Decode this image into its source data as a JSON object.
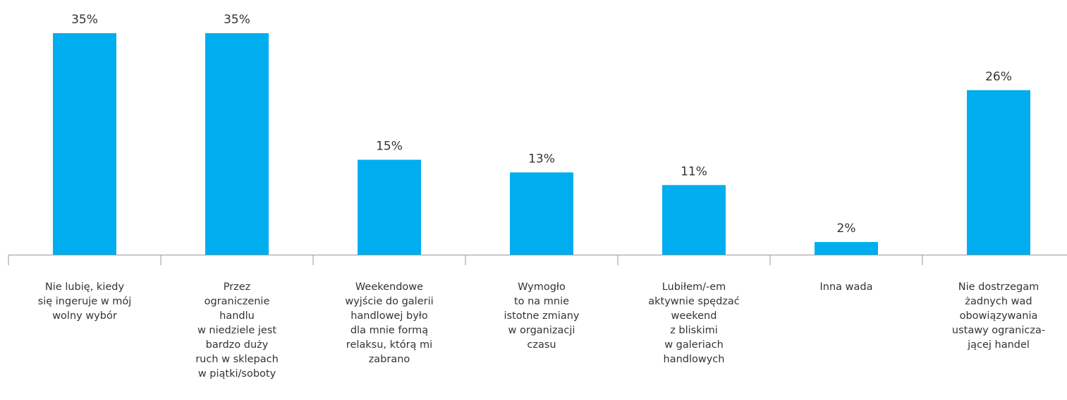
{
  "chart_data": {
    "type": "bar",
    "color": "#00aeef",
    "categories": [
      [
        "Nie lubię, kiedy",
        "się ingeruje w mój",
        "wolny wybór"
      ],
      [
        "Przez",
        "ograniczenie",
        "handlu",
        "w niedziele jest",
        "bardzo duży",
        "ruch w sklepach",
        "w piątki/soboty"
      ],
      [
        "Weekendowe",
        "wyjście do galerii",
        "handlowej było",
        "dla mnie formą",
        "relaksu, którą mi",
        "zabrano"
      ],
      [
        "Wymogło",
        "to na mnie",
        "istotne zmiany",
        "w organizacji",
        "czasu"
      ],
      [
        "Lubiłem/-em",
        "aktywnie spędzać",
        "weekend",
        "z bliskimi",
        "w galeriach",
        "handlowych"
      ],
      [
        "Inna wada"
      ],
      [
        "Nie dostrzegam",
        "żadnych wad",
        "obowiązywania",
        "ustawy ogranicza-",
        "jącej handel"
      ]
    ],
    "values": [
      35,
      35,
      15,
      13,
      11,
      2,
      26
    ],
    "value_labels": [
      "35%",
      "35%",
      "15%",
      "13%",
      "11%",
      "2%",
      "26%"
    ]
  }
}
